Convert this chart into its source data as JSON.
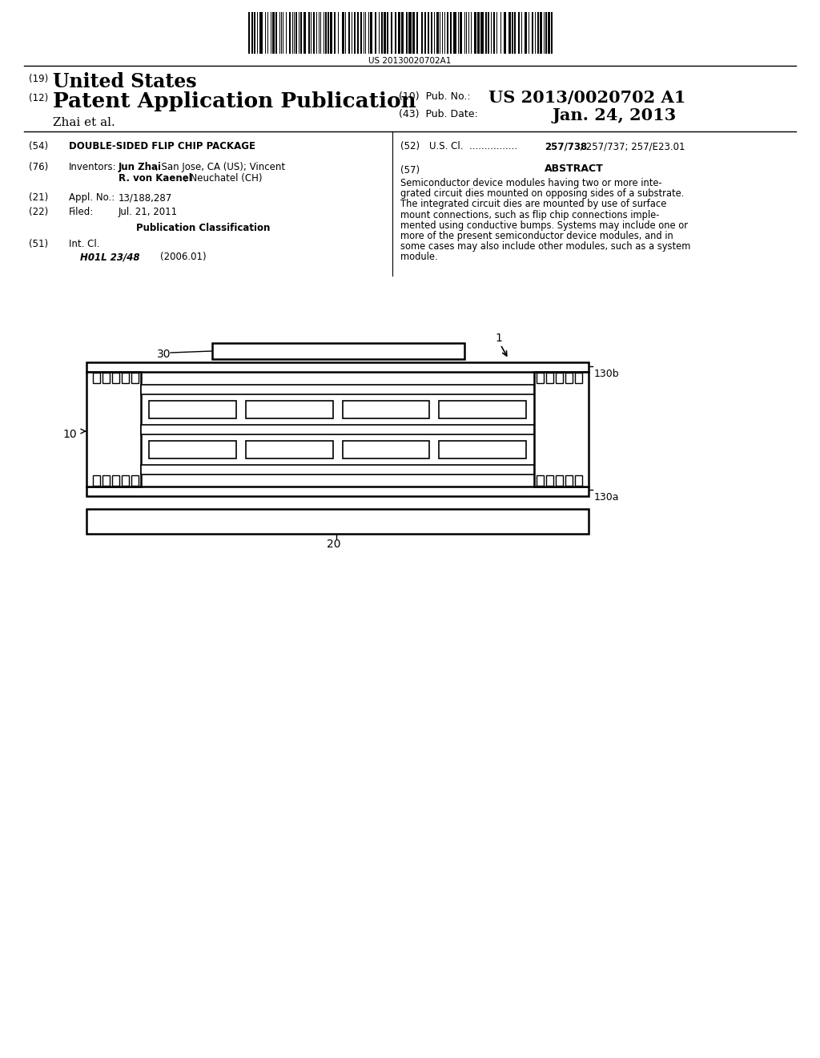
{
  "bg_color": "#ffffff",
  "barcode_text": "US 20130020702A1",
  "title": "DOUBLE-SIDED FLIP CHIP PACKAGE",
  "us_cl": "257/738; 257/737; 257/E23.01",
  "abstract": "Semiconductor device modules having two or more inte-\ngrated circuit dies mounted on opposing sides of a substrate.\nThe integrated circuit dies are mounted by use of surface\nmount connections, such as flip chip connections imple-\nmented using conductive bumps. Systems may include one or\nmore of the present semiconductor device modules, and in\nsome cases may also include other modules, such as a system\nmodule."
}
